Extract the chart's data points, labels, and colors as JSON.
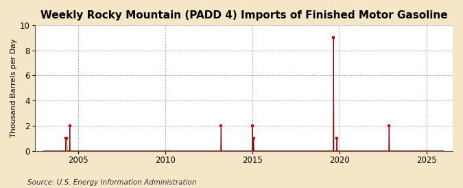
{
  "title": "Weekly Rocky Mountain (PADD 4) Imports of Finished Motor Gasoline",
  "ylabel": "Thousand Barrels per Day",
  "source": "Source: U.S. Energy Information Administration",
  "fig_bg_color": "#f5e6c8",
  "plot_bg_color": "#ffffff",
  "line_color": "#8b0000",
  "marker_color": "#cc0000",
  "xlim": [
    2002.5,
    2026.5
  ],
  "ylim": [
    0,
    10
  ],
  "yticks": [
    0,
    2,
    4,
    6,
    8,
    10
  ],
  "xticks": [
    2005,
    2010,
    2015,
    2020,
    2025
  ],
  "data_points": [
    [
      2004.2,
      0.0
    ],
    [
      2004.3,
      1.0
    ],
    [
      2004.35,
      1.0
    ],
    [
      2004.4,
      1.0
    ],
    [
      2004.45,
      1.0
    ],
    [
      2004.5,
      2.0
    ],
    [
      2004.55,
      0.0
    ],
    [
      2019.6,
      9.0
    ],
    [
      2019.85,
      1.0
    ],
    [
      2013.2,
      2.0
    ],
    [
      2015.0,
      2.0
    ],
    [
      2015.05,
      1.0
    ],
    [
      2022.8,
      2.0
    ]
  ],
  "title_fontsize": 11,
  "ylabel_fontsize": 8,
  "tick_fontsize": 8.5,
  "source_fontsize": 7.5
}
